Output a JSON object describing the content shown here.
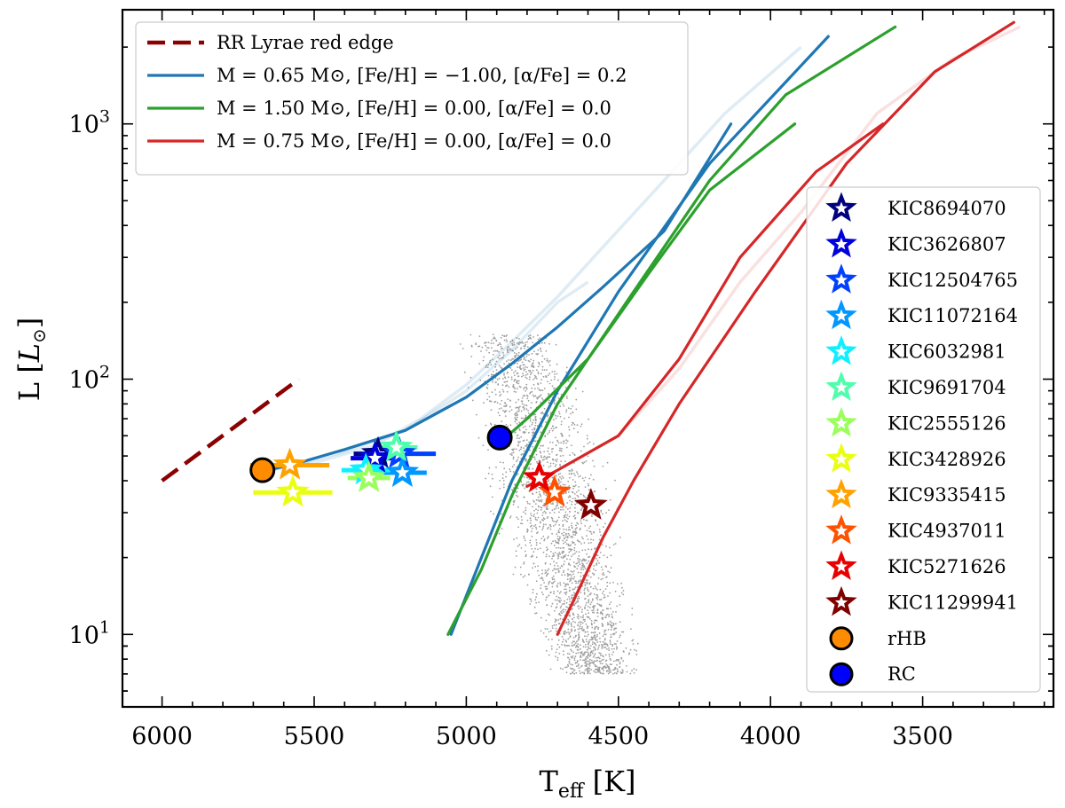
{
  "chart_data": {
    "type": "scatter",
    "xlabel": "T",
    "xlabel_sub": "eff",
    "xlabel_unit": "[K]",
    "ylabel": "L [",
    "ylabel_unit": "L",
    "ylabel_sub": "⊙",
    "ylabel_close": "]",
    "x_reversed": true,
    "xlim": [
      6130,
      3070
    ],
    "ylim": [
      5.2,
      2800
    ],
    "yscale": "log",
    "grid": false,
    "x_ticks": [
      6000,
      5500,
      5000,
      4500,
      4000,
      3500
    ],
    "x_tick_labels": [
      "6000",
      "5500",
      "5000",
      "4500",
      "4000",
      "3500"
    ],
    "y_major_ticks": [
      10,
      100,
      1000
    ],
    "y_tick_labels": [
      {
        "base": "10",
        "exp": "1"
      },
      {
        "base": "10",
        "exp": "2"
      },
      {
        "base": "10",
        "exp": "3"
      }
    ],
    "legend_top_left": {
      "placement": "top-left",
      "entries": [
        {
          "label": "RR Lyrae red edge",
          "color": "#8b0000",
          "style": "dashed"
        },
        {
          "label": "M = 0.65 M⊙, [Fe/H] = −1.00, [α/Fe] = 0.2",
          "color": "#1f77b4",
          "style": "solid"
        },
        {
          "label": "M = 1.50 M⊙, [Fe/H] = 0.00, [α/Fe] = 0.0",
          "color": "#2ca02c",
          "style": "solid"
        },
        {
          "label": "M = 0.75 M⊙, [Fe/H] = 0.00, [α/Fe] = 0.0",
          "color": "#d62728",
          "style": "solid"
        }
      ]
    },
    "legend_right": {
      "placement": "center-right",
      "entries": [
        {
          "label": "KIC8694070",
          "color": "#000080",
          "marker": "star"
        },
        {
          "label": "KIC3626807",
          "color": "#0000dd",
          "marker": "star"
        },
        {
          "label": "KIC12504765",
          "color": "#0040ff",
          "marker": "star"
        },
        {
          "label": "KIC11072164",
          "color": "#0097ff",
          "marker": "star"
        },
        {
          "label": "KIC6032981",
          "color": "#0ff0ff",
          "marker": "star"
        },
        {
          "label": "KIC9691704",
          "color": "#4dffaa",
          "marker": "star"
        },
        {
          "label": "KIC2555126",
          "color": "#9aff5a",
          "marker": "star"
        },
        {
          "label": "KIC3428926",
          "color": "#eaff0f",
          "marker": "star"
        },
        {
          "label": "KIC9335415",
          "color": "#ffa200",
          "marker": "star"
        },
        {
          "label": "KIC4937011",
          "color": "#ff5200",
          "marker": "star"
        },
        {
          "label": "KIC5271626",
          "color": "#e80000",
          "marker": "star"
        },
        {
          "label": "KIC11299941",
          "color": "#800000",
          "marker": "star"
        },
        {
          "label": "rHB",
          "color": "#ff8c00",
          "marker": "circle"
        },
        {
          "label": "RC",
          "color": "#0000ff",
          "marker": "circle"
        }
      ]
    },
    "rr_lyrae_edge": {
      "color": "#8b0000",
      "points": [
        [
          6000,
          40
        ],
        [
          5550,
          100
        ]
      ]
    },
    "tracks": [
      {
        "name": "M = 0.65 M⊙, [Fe/H] = −1.00, [α/Fe] = 0.2",
        "color": "#1f77b4",
        "segments": [
          [
            [
              5050,
              10
            ],
            [
              4950,
              20
            ],
            [
              4850,
              40
            ],
            [
              4700,
              90
            ],
            [
              4500,
              220
            ],
            [
              4200,
              700
            ],
            [
              3810,
              2200
            ]
          ],
          [
            [
              5700,
              43
            ],
            [
              5650,
              44
            ],
            [
              5550,
              47
            ],
            [
              5400,
              53
            ],
            [
              5200,
              63
            ],
            [
              5000,
              85
            ],
            [
              4850,
              115
            ],
            [
              4700,
              160
            ],
            [
              4550,
              230
            ],
            [
              4350,
              380
            ],
            [
              4130,
              1000
            ]
          ]
        ],
        "faint_segments": [
          [
            [
              5650,
              44
            ],
            [
              5500,
              47
            ],
            [
              5300,
              55
            ],
            [
              5150,
              70
            ],
            [
              5000,
              95
            ],
            [
              4850,
              140
            ],
            [
              4700,
              210
            ],
            [
              4550,
              330
            ],
            [
              4350,
              600
            ],
            [
              4150,
              1100
            ],
            [
              3900,
              2000
            ]
          ],
          [
            [
              5600,
              45
            ],
            [
              5400,
              52
            ],
            [
              5200,
              63
            ],
            [
              5000,
              90
            ],
            [
              4850,
              130
            ],
            [
              4700,
              200
            ],
            [
              4600,
              240
            ]
          ]
        ]
      },
      {
        "name": "M = 1.50 M⊙, [Fe/H] = 0.00, [α/Fe] = 0.0",
        "color": "#2ca02c",
        "segments": [
          [
            [
              5060,
              10
            ],
            [
              4950,
              18
            ],
            [
              4850,
              35
            ],
            [
              4700,
              80
            ],
            [
              4450,
              220
            ],
            [
              4200,
              600
            ],
            [
              3950,
              1300
            ],
            [
              3590,
              2400
            ]
          ],
          [
            [
              4900,
              55
            ],
            [
              4800,
              70
            ],
            [
              4600,
              120
            ],
            [
              4400,
              260
            ],
            [
              4200,
              550
            ],
            [
              3920,
              1000
            ]
          ]
        ],
        "faint_segments": []
      },
      {
        "name": "M = 0.75 M⊙, [Fe/H] = 0.00, [α/Fe] = 0.0",
        "color": "#d62728",
        "segments": [
          [
            [
              4700,
              10
            ],
            [
              4630,
              15
            ],
            [
              4550,
              24
            ],
            [
              4450,
              40
            ],
            [
              4300,
              80
            ],
            [
              4050,
              220
            ],
            [
              3750,
              700
            ],
            [
              3460,
              1600
            ],
            [
              3200,
              2500
            ]
          ],
          [
            [
              4800,
              38
            ],
            [
              4700,
              44
            ],
            [
              4500,
              60
            ],
            [
              4300,
              120
            ],
            [
              4100,
              300
            ],
            [
              3850,
              650
            ],
            [
              3630,
              1000
            ]
          ]
        ],
        "faint_segments": [
          [
            [
              4500,
              60
            ],
            [
              4300,
              110
            ],
            [
              4100,
              240
            ],
            [
              3900,
              450
            ],
            [
              3650,
              1100
            ],
            [
              3400,
              1800
            ],
            [
              3180,
              2400
            ]
          ]
        ]
      }
    ],
    "stars": [
      {
        "name": "KIC8694070",
        "teff": 5290,
        "lum": 51,
        "teff_err": 80,
        "color": "#000080"
      },
      {
        "name": "KIC3626807",
        "teff": 5300,
        "lum": 49,
        "teff_err": 80,
        "color": "#0000dd"
      },
      {
        "name": "KIC12504765",
        "teff": 5220,
        "lum": 51,
        "teff_err": 120,
        "color": "#0040ff"
      },
      {
        "name": "KIC11072164",
        "teff": 5210,
        "lum": 43,
        "teff_err": 80,
        "color": "#0097ff"
      },
      {
        "name": "KIC6032981",
        "teff": 5330,
        "lum": 44,
        "teff_err": 80,
        "color": "#0ff0ff"
      },
      {
        "name": "KIC9691704",
        "teff": 5230,
        "lum": 54,
        "teff_err": 70,
        "color": "#4dffaa"
      },
      {
        "name": "KIC2555126",
        "teff": 5320,
        "lum": 41,
        "teff_err": 70,
        "color": "#9aff5a"
      },
      {
        "name": "KIC3428926",
        "teff": 5570,
        "lum": 36,
        "teff_err": 130,
        "color": "#eaff0f"
      },
      {
        "name": "KIC9335415",
        "teff": 5580,
        "lum": 46,
        "teff_err": 130,
        "color": "#ffa200"
      },
      {
        "name": "KIC4937011",
        "teff": 4710,
        "lum": 36,
        "teff_err": 0,
        "color": "#ff5200"
      },
      {
        "name": "KIC5271626",
        "teff": 4760,
        "lum": 41,
        "teff_err": 0,
        "color": "#e80000"
      },
      {
        "name": "KIC11299941",
        "teff": 4590,
        "lum": 32,
        "teff_err": 0,
        "color": "#800000"
      }
    ],
    "markers": [
      {
        "name": "rHB",
        "teff": 5670,
        "lum": 44,
        "color": "#ff8c00"
      },
      {
        "name": "RC",
        "teff": 4890,
        "lum": 59,
        "color": "#0000ff"
      }
    ],
    "background_cloud": {
      "color": "#9e9e9e",
      "teff_range": [
        4400,
        5150
      ],
      "lum_range": [
        7,
        150
      ],
      "count": 2600
    }
  }
}
